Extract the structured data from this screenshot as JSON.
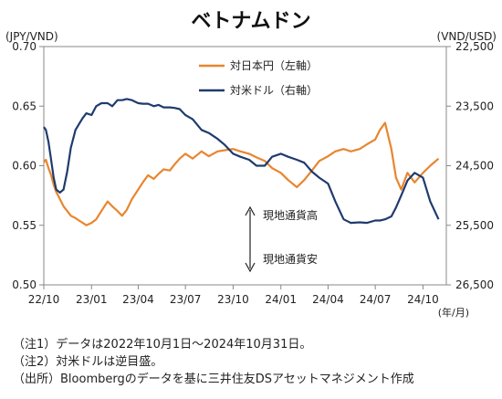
{
  "chart_data": {
    "type": "line",
    "title": "ベトナムドン",
    "left_unit": "(JPY/VND)",
    "right_unit": "(VND/USD)",
    "x_unit": "(年/月)",
    "x_ticks": [
      "22/10",
      "23/01",
      "23/04",
      "23/07",
      "23/10",
      "24/01",
      "24/04",
      "24/07",
      "24/10"
    ],
    "left_axis": {
      "ylim": [
        0.5,
        0.7
      ],
      "ticks": [
        "0.70",
        "0.65",
        "0.60",
        "0.55",
        "0.50"
      ]
    },
    "right_axis": {
      "ylim": [
        22500,
        26500
      ],
      "inverted": true,
      "ticks": [
        "22,500",
        "23,500",
        "24,500",
        "25,500",
        "26,500"
      ]
    },
    "legend_placement": "top-center",
    "colors": {
      "jpy": "#E8862E",
      "usd": "#1F3B6E"
    },
    "series": [
      {
        "name": "対日本円（左軸）",
        "axis": "left",
        "x": [
          "2022-10-01",
          "2022-10-05",
          "2022-10-10",
          "2022-10-15",
          "2022-10-20",
          "2022-10-25",
          "2022-11-01",
          "2022-11-08",
          "2022-11-15",
          "2022-11-22",
          "2022-12-01",
          "2022-12-08",
          "2022-12-15",
          "2022-12-22",
          "2023-01-01",
          "2023-01-10",
          "2023-01-20",
          "2023-02-01",
          "2023-02-10",
          "2023-02-20",
          "2023-03-01",
          "2023-03-10",
          "2023-03-20",
          "2023-04-01",
          "2023-04-10",
          "2023-04-20",
          "2023-05-01",
          "2023-05-10",
          "2023-05-20",
          "2023-06-01",
          "2023-06-10",
          "2023-06-20",
          "2023-07-01",
          "2023-07-15",
          "2023-08-01",
          "2023-08-15",
          "2023-09-01",
          "2023-09-15",
          "2023-10-01",
          "2023-10-15",
          "2023-11-01",
          "2023-11-15",
          "2023-12-01",
          "2023-12-15",
          "2024-01-01",
          "2024-01-15",
          "2024-02-01",
          "2024-02-15",
          "2024-03-01",
          "2024-03-15",
          "2024-04-01",
          "2024-04-15",
          "2024-05-01",
          "2024-05-15",
          "2024-06-01",
          "2024-06-15",
          "2024-07-01",
          "2024-07-10",
          "2024-07-20",
          "2024-08-01",
          "2024-08-10",
          "2024-08-20",
          "2024-09-01",
          "2024-09-15",
          "2024-10-01",
          "2024-10-15",
          "2024-10-31"
        ],
        "values": [
          0.603,
          0.605,
          0.598,
          0.592,
          0.584,
          0.578,
          0.572,
          0.566,
          0.562,
          0.558,
          0.556,
          0.554,
          0.552,
          0.55,
          0.552,
          0.555,
          0.562,
          0.57,
          0.566,
          0.562,
          0.558,
          0.563,
          0.572,
          0.58,
          0.586,
          0.592,
          0.589,
          0.593,
          0.597,
          0.596,
          0.601,
          0.606,
          0.61,
          0.606,
          0.612,
          0.608,
          0.612,
          0.613,
          0.614,
          0.612,
          0.61,
          0.607,
          0.604,
          0.598,
          0.594,
          0.588,
          0.582,
          0.588,
          0.596,
          0.604,
          0.608,
          0.612,
          0.614,
          0.612,
          0.614,
          0.618,
          0.622,
          0.63,
          0.636,
          0.614,
          0.59,
          0.58,
          0.594,
          0.586,
          0.594,
          0.6,
          0.606
        ]
      },
      {
        "name": "対米ドル（右軸）",
        "axis": "right",
        "x": [
          "2022-10-01",
          "2022-10-05",
          "2022-10-10",
          "2022-10-15",
          "2022-10-20",
          "2022-10-25",
          "2022-11-01",
          "2022-11-08",
          "2022-11-15",
          "2022-11-22",
          "2022-12-01",
          "2022-12-08",
          "2022-12-15",
          "2022-12-22",
          "2023-01-01",
          "2023-01-10",
          "2023-01-20",
          "2023-02-01",
          "2023-02-10",
          "2023-02-20",
          "2023-03-01",
          "2023-03-10",
          "2023-03-20",
          "2023-04-01",
          "2023-04-10",
          "2023-04-20",
          "2023-05-01",
          "2023-05-10",
          "2023-05-20",
          "2023-06-01",
          "2023-06-10",
          "2023-06-20",
          "2023-07-01",
          "2023-07-15",
          "2023-08-01",
          "2023-08-15",
          "2023-09-01",
          "2023-09-15",
          "2023-10-01",
          "2023-10-15",
          "2023-11-01",
          "2023-11-15",
          "2023-12-01",
          "2023-12-15",
          "2024-01-01",
          "2024-01-15",
          "2024-02-01",
          "2024-02-15",
          "2024-03-01",
          "2024-03-15",
          "2024-04-01",
          "2024-04-15",
          "2024-05-01",
          "2024-05-15",
          "2024-06-01",
          "2024-06-15",
          "2024-07-01",
          "2024-07-10",
          "2024-07-20",
          "2024-08-01",
          "2024-08-10",
          "2024-08-20",
          "2024-09-01",
          "2024-09-15",
          "2024-10-01",
          "2024-10-15",
          "2024-10-31"
        ],
        "values": [
          23850,
          23900,
          24100,
          24400,
          24700,
          24900,
          24950,
          24900,
          24600,
          24200,
          23900,
          23800,
          23700,
          23620,
          23650,
          23500,
          23450,
          23450,
          23500,
          23400,
          23400,
          23380,
          23400,
          23450,
          23460,
          23460,
          23500,
          23480,
          23520,
          23520,
          23530,
          23550,
          23650,
          23720,
          23900,
          23950,
          24050,
          24150,
          24300,
          24350,
          24400,
          24500,
          24500,
          24350,
          24300,
          24350,
          24400,
          24450,
          24600,
          24700,
          24800,
          25100,
          25400,
          25460,
          25450,
          25460,
          25420,
          25420,
          25400,
          25350,
          25200,
          25000,
          24750,
          24620,
          24700,
          25100,
          25400
        ]
      }
    ],
    "annotations": {
      "up_label": "現地通貨高",
      "down_label": "現地通貨安"
    }
  },
  "notes": [
    "（注1）データは2022年10月1日～2024年10月31日。",
    "（注2）対米ドルは逆目盛。",
    "（出所）Bloombergのデータを基に三井住友DSアセットマネジメント作成"
  ]
}
